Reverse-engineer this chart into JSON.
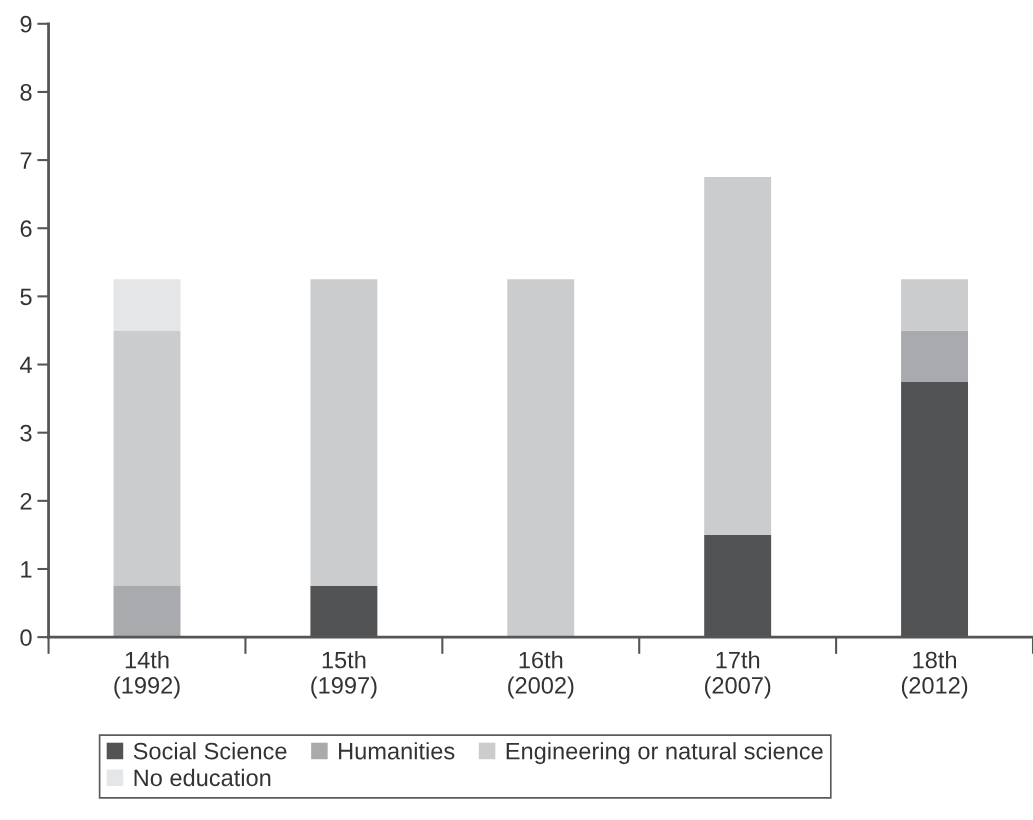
{
  "chart_data": {
    "type": "bar",
    "stacked": true,
    "categories": [
      "14th\n(1992)",
      "15th\n(1997)",
      "16th\n(2002)",
      "17th\n(2007)",
      "18th\n(2012)"
    ],
    "series": [
      {
        "name": "Social Science",
        "color": "#525355",
        "values": [
          0,
          0.75,
          0,
          1.5,
          3.75
        ]
      },
      {
        "name": "Humanities",
        "color": "#a9aaad",
        "values": [
          0.75,
          0,
          0,
          0,
          0.75
        ]
      },
      {
        "name": "Engineering or natural science",
        "color": "#cbcccd",
        "values": [
          3.75,
          4.5,
          5.25,
          5.25,
          0.75
        ]
      },
      {
        "name": "No education",
        "color": "#e5e6e7",
        "values": [
          0.75,
          0,
          0,
          0,
          0
        ]
      }
    ],
    "ylim": [
      0,
      9
    ],
    "yticks": [
      0,
      1,
      2,
      3,
      4,
      5,
      6,
      7,
      8,
      9
    ],
    "grid": false,
    "legend": "bottom"
  }
}
